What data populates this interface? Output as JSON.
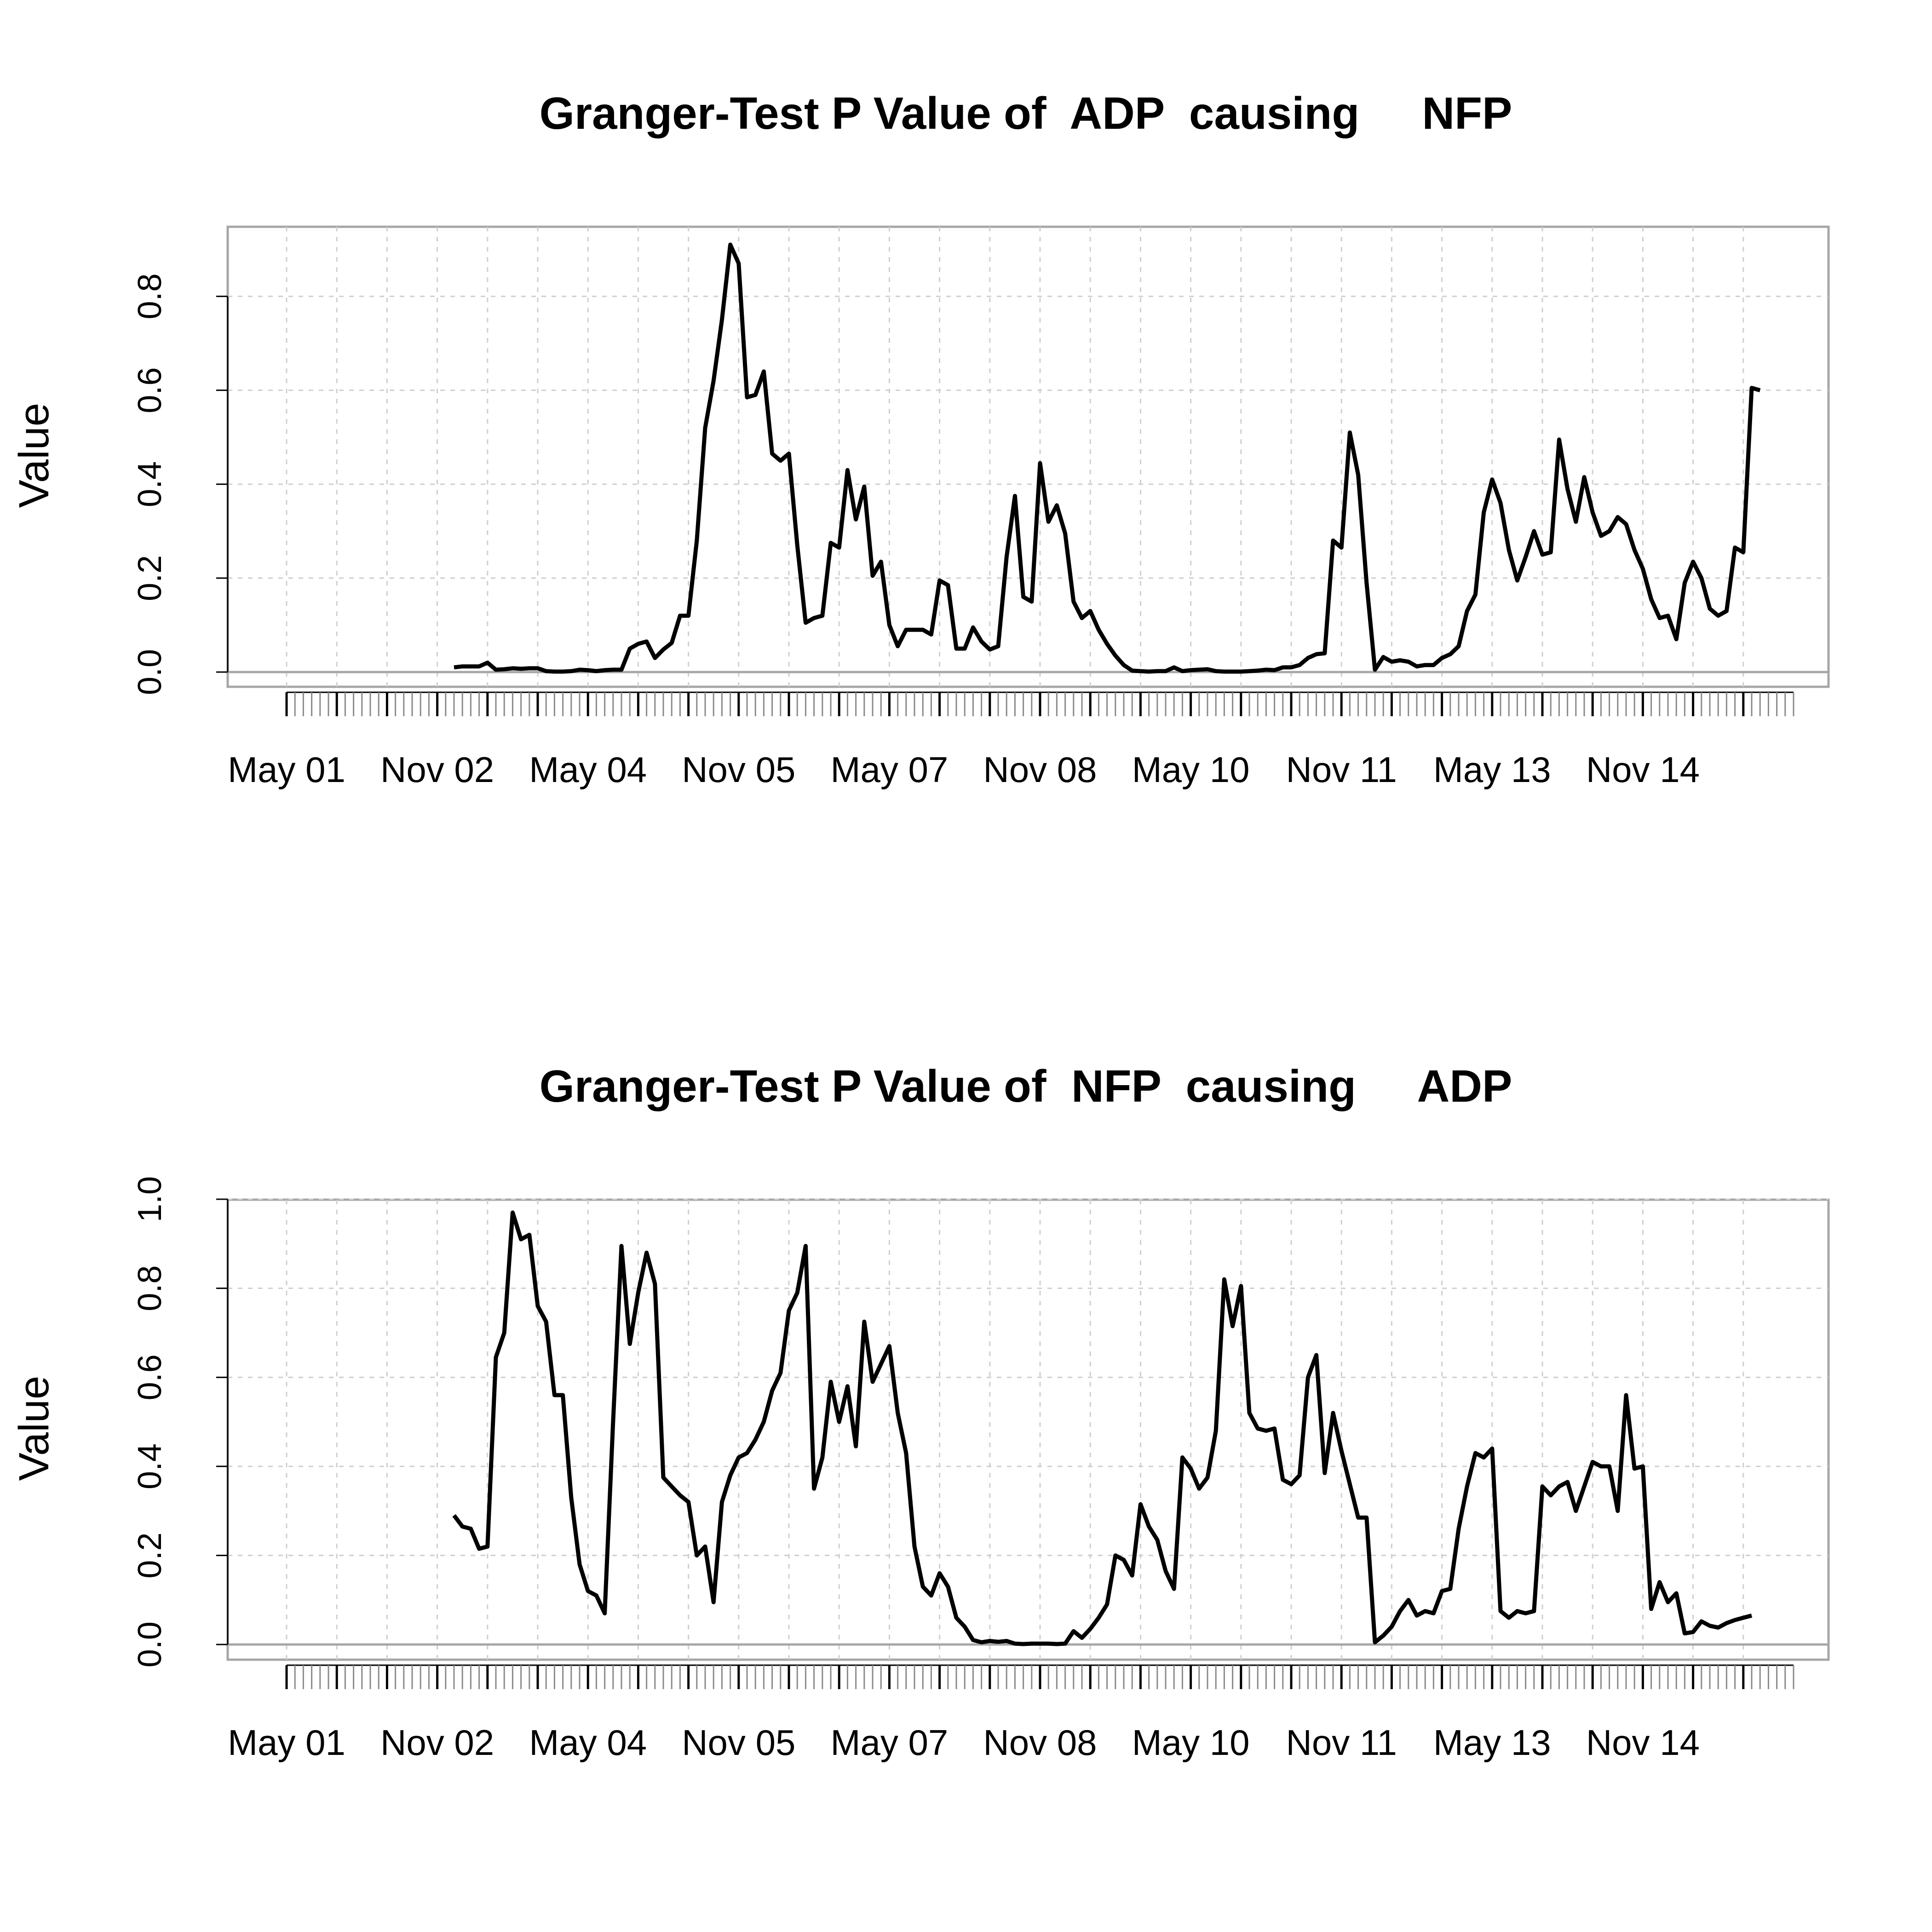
{
  "chart_data": [
    {
      "type": "line",
      "title": "Granger-Test P Value of  ADP  causing     NFP",
      "xlabel": "",
      "ylabel": "Value",
      "ylim": [
        0,
        0.95
      ],
      "yticks": [
        0.0,
        0.2,
        0.4,
        0.6,
        0.8
      ],
      "ytick_labels": [
        "0.0",
        "0.2",
        "0.4",
        "0.6",
        "0.8"
      ],
      "xticks": [
        "May 01",
        "Nov 02",
        "May 04",
        "Nov 05",
        "May 07",
        "Nov 08",
        "May 10",
        "Nov 11",
        "May 13",
        "Nov 14"
      ],
      "grid": true,
      "series": [
        {
          "x_start": "2003-01",
          "values": [
            0.01,
            0.012,
            0.012,
            0.012,
            0.02,
            0.005,
            0.006,
            0.008,
            0.007,
            0.008,
            0.008,
            0.002,
            0.001,
            0.001,
            0.002,
            0.005,
            0.004,
            0.002,
            0.004,
            0.005,
            0.005,
            0.05,
            0.06,
            0.065,
            0.03,
            0.048,
            0.062,
            0.12,
            0.12,
            0.28,
            0.52,
            0.62,
            0.75,
            0.91,
            0.87,
            0.585,
            0.59,
            0.64,
            0.465,
            0.45,
            0.465,
            0.27,
            0.105,
            0.115,
            0.12,
            0.275,
            0.265,
            0.43,
            0.325,
            0.395,
            0.205,
            0.235,
            0.1,
            0.055,
            0.09,
            0.09,
            0.09,
            0.08,
            0.195,
            0.185,
            0.05,
            0.05,
            0.095,
            0.065,
            0.048,
            0.055,
            0.245,
            0.375,
            0.16,
            0.15,
            0.445,
            0.32,
            0.355,
            0.295,
            0.15,
            0.115,
            0.13,
            0.09,
            0.06,
            0.035,
            0.015,
            0.003,
            0.002,
            0.001,
            0.002,
            0.002,
            0.01,
            0.002,
            0.004,
            0.005,
            0.006,
            0.002,
            0.001,
            0.001,
            0.001,
            0.002,
            0.003,
            0.005,
            0.004,
            0.01,
            0.01,
            0.015,
            0.03,
            0.038,
            0.04,
            0.28,
            0.265,
            0.51,
            0.42,
            0.19,
            0.005,
            0.032,
            0.022,
            0.025,
            0.022,
            0.012,
            0.015,
            0.015,
            0.03,
            0.038,
            0.055,
            0.13,
            0.165,
            0.34,
            0.41,
            0.36,
            0.26,
            0.195,
            0.245,
            0.3,
            0.25,
            0.255,
            0.495,
            0.39,
            0.32,
            0.415,
            0.34,
            0.29,
            0.3,
            0.33,
            0.315,
            0.26,
            0.22,
            0.155,
            0.115,
            0.12,
            0.07,
            0.19,
            0.235,
            0.2,
            0.135,
            0.12,
            0.13,
            0.265,
            0.255,
            0.605,
            0.6
          ]
        }
      ]
    },
    {
      "type": "line",
      "title": "Granger-Test P Value of  NFP  causing     ADP",
      "xlabel": "",
      "ylabel": "Value",
      "ylim": [
        0,
        1.0
      ],
      "yticks": [
        0.0,
        0.2,
        0.4,
        0.6,
        0.8,
        1.0
      ],
      "ytick_labels": [
        "0.0",
        "0.2",
        "0.4",
        "0.6",
        "0.8",
        "1.0"
      ],
      "xticks": [
        "May 01",
        "Nov 02",
        "May 04",
        "Nov 05",
        "May 07",
        "Nov 08",
        "May 10",
        "Nov 11",
        "May 13",
        "Nov 14"
      ],
      "grid": true,
      "series": [
        {
          "x_start": "2003-01",
          "values": [
            0.29,
            0.265,
            0.26,
            0.215,
            0.22,
            0.645,
            0.7,
            0.97,
            0.91,
            0.92,
            0.76,
            0.725,
            0.56,
            0.56,
            0.33,
            0.18,
            0.12,
            0.11,
            0.07,
            0.5,
            0.895,
            0.675,
            0.79,
            0.88,
            0.81,
            0.375,
            0.355,
            0.335,
            0.32,
            0.2,
            0.22,
            0.095,
            0.32,
            0.38,
            0.42,
            0.43,
            0.46,
            0.5,
            0.57,
            0.61,
            0.75,
            0.79,
            0.895,
            0.35,
            0.42,
            0.59,
            0.5,
            0.58,
            0.445,
            0.725,
            0.59,
            0.63,
            0.67,
            0.52,
            0.43,
            0.22,
            0.13,
            0.11,
            0.16,
            0.13,
            0.06,
            0.04,
            0.01,
            0.005,
            0.008,
            0.006,
            0.008,
            0.002,
            0.001,
            0.002,
            0.002,
            0.002,
            0.001,
            0.002,
            0.03,
            0.015,
            0.035,
            0.06,
            0.09,
            0.2,
            0.19,
            0.155,
            0.315,
            0.265,
            0.235,
            0.165,
            0.125,
            0.42,
            0.395,
            0.35,
            0.375,
            0.48,
            0.82,
            0.715,
            0.805,
            0.52,
            0.485,
            0.48,
            0.485,
            0.37,
            0.36,
            0.38,
            0.6,
            0.65,
            0.385,
            0.52,
            0.435,
            0.36,
            0.285,
            0.285,
            0.005,
            0.02,
            0.04,
            0.075,
            0.1,
            0.065,
            0.075,
            0.07,
            0.12,
            0.125,
            0.26,
            0.355,
            0.43,
            0.42,
            0.44,
            0.075,
            0.06,
            0.075,
            0.07,
            0.075,
            0.355,
            0.335,
            0.355,
            0.365,
            0.3,
            0.355,
            0.41,
            0.4,
            0.4,
            0.3,
            0.56,
            0.395,
            0.4,
            0.08,
            0.14,
            0.095,
            0.115,
            0.025,
            0.028,
            0.052,
            0.042,
            0.038,
            0.048,
            0.055,
            0.06,
            0.065
          ]
        }
      ]
    }
  ]
}
